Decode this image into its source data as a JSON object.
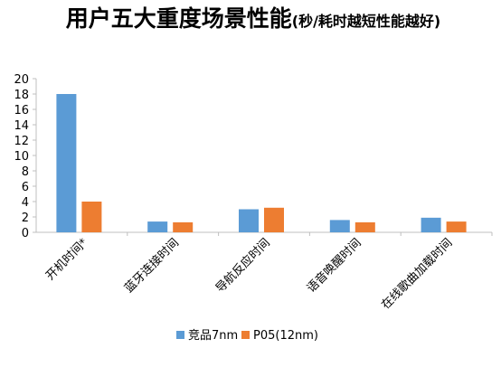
{
  "chart_data": {
    "type": "bar",
    "title": "用户五大重度场景性能",
    "subtitle": "(秒/耗时越短性能越好)",
    "categories": [
      "开机时间*",
      "蓝牙连接时间",
      "导航反应时间",
      "语音唤醒时间",
      "在线歌曲加载时间"
    ],
    "series": [
      {
        "name": "竞品7nm",
        "color": "#5B9BD5",
        "values": [
          18.0,
          1.4,
          3.0,
          1.6,
          1.9
        ]
      },
      {
        "name": "P05(12nm)",
        "color": "#ED7D31",
        "values": [
          4.0,
          1.3,
          3.2,
          1.3,
          1.4
        ]
      }
    ],
    "ylim": [
      0,
      20
    ],
    "yticks": [
      0,
      2,
      4,
      6,
      8,
      10,
      12,
      14,
      16,
      18,
      20
    ],
    "xlabel": "",
    "ylabel": "",
    "grid": false,
    "legend_position": "bottom"
  }
}
